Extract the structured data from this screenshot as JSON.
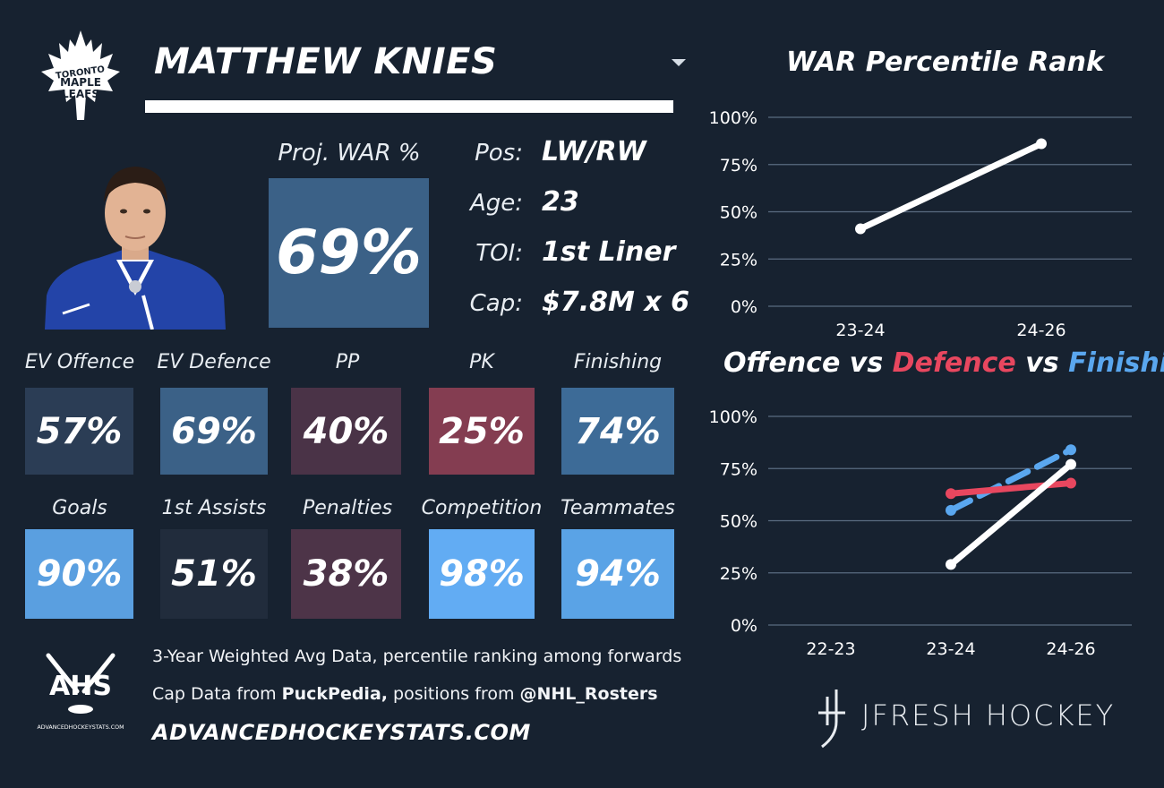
{
  "player": {
    "name": "MATTHEW KNIES",
    "team_logo_text": [
      "TORONTO",
      "MAPLE",
      "LEAFS"
    ],
    "proj_war_label": "Proj. WAR %",
    "proj_war_value": "69%",
    "proj_war_color": "#3b6187"
  },
  "info": [
    {
      "key": "Pos:",
      "value": "LW/RW"
    },
    {
      "key": "Age:",
      "value": "23"
    },
    {
      "key": "TOI:",
      "value": "1st Liner"
    },
    {
      "key": "Cap:",
      "value": "$7.8M x 6"
    }
  ],
  "metrics_row1": [
    {
      "label": "EV Offence",
      "value": "57%",
      "color": "#2b3d55"
    },
    {
      "label": "EV Defence",
      "value": "69%",
      "color": "#3b6187"
    },
    {
      "label": "PP",
      "value": "40%",
      "color": "#4a3347"
    },
    {
      "label": "PK",
      "value": "25%",
      "color": "#843d51"
    },
    {
      "label": "Finishing",
      "value": "74%",
      "color": "#3d6b97"
    }
  ],
  "metrics_row2": [
    {
      "label": "Goals",
      "value": "90%",
      "color": "#5a9fe0"
    },
    {
      "label": "1st Assists",
      "value": "51%",
      "color": "#212c3c"
    },
    {
      "label": "Penalties",
      "value": "38%",
      "color": "#4d3448"
    },
    {
      "label": "Competition",
      "value": "98%",
      "color": "#62acf3"
    },
    {
      "label": "Teammates",
      "value": "94%",
      "color": "#5aa3e6"
    }
  ],
  "footer": {
    "logo_text": "AHS",
    "logo_subtext": "ADVANCEDHOCKEYSTATS.COM",
    "line1": "3-Year Weighted Avg Data, percentile ranking among forwards",
    "line2_prefix": "Cap Data from ",
    "line2_bold1": "PuckPedia,",
    "line2_mid": " positions from ",
    "line2_bold2": "@NHL_Rosters",
    "url": "ADVANCEDHOCKEYSTATS.COM",
    "brand": "JFRESH HOCKEY"
  },
  "colors": {
    "background": "#172230",
    "offence": "#ffffff",
    "defence": "#e8475f",
    "finishing": "#5aa7ef",
    "grid": "#5a6b80"
  },
  "chart_data": [
    {
      "type": "line",
      "title": "WAR Percentile Rank",
      "categories": [
        "23-24",
        "24-26"
      ],
      "series": [
        {
          "values": [
            41,
            86
          ],
          "color": "#ffffff"
        }
      ],
      "ylim": [
        0,
        100
      ],
      "yticks": [
        "0%",
        "25%",
        "50%",
        "75%",
        "100%"
      ],
      "grid": true
    },
    {
      "type": "line",
      "title_parts": [
        {
          "text": "Offence",
          "color": "#ffffff"
        },
        {
          "text": " vs ",
          "color": "#ffffff"
        },
        {
          "text": "Defence",
          "color": "#e8475f"
        },
        {
          "text": " vs ",
          "color": "#ffffff"
        },
        {
          "text": "Finishing",
          "color": "#5aa7ef"
        }
      ],
      "categories": [
        "22-23",
        "23-24",
        "24-26"
      ],
      "series": [
        {
          "name": "Finishing",
          "values": [
            null,
            55,
            84
          ],
          "color": "#5aa7ef",
          "dashed": true
        },
        {
          "name": "Defence",
          "values": [
            null,
            63,
            68
          ],
          "color": "#e8475f",
          "dashed": false
        },
        {
          "name": "Offence",
          "values": [
            null,
            29,
            77
          ],
          "color": "#ffffff",
          "dashed": false
        }
      ],
      "ylim": [
        0,
        100
      ],
      "yticks": [
        "0%",
        "25%",
        "50%",
        "75%",
        "100%"
      ],
      "grid": true
    }
  ]
}
